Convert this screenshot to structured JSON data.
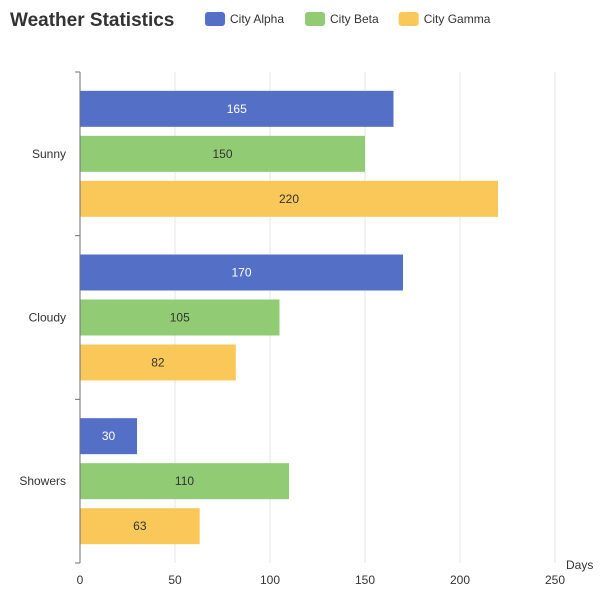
{
  "chart_data": {
    "type": "bar",
    "orientation": "horizontal",
    "title": "Weather Statistics",
    "xlabel": "Days",
    "ylabel": "",
    "xlim": [
      0,
      250
    ],
    "x_ticks": [
      0,
      50,
      100,
      150,
      200,
      250
    ],
    "grid": true,
    "legend_position": "top",
    "categories": [
      "Sunny",
      "Cloudy",
      "Showers"
    ],
    "series": [
      {
        "name": "City Alpha",
        "color": "#5470c6",
        "label_color": "#ffffff",
        "values": [
          165,
          170,
          30
        ]
      },
      {
        "name": "City Beta",
        "color": "#91cc75",
        "label_color": "#333333",
        "values": [
          150,
          105,
          110
        ]
      },
      {
        "name": "City Gamma",
        "color": "#fac858",
        "label_color": "#333333",
        "values": [
          220,
          82,
          63
        ]
      }
    ]
  }
}
